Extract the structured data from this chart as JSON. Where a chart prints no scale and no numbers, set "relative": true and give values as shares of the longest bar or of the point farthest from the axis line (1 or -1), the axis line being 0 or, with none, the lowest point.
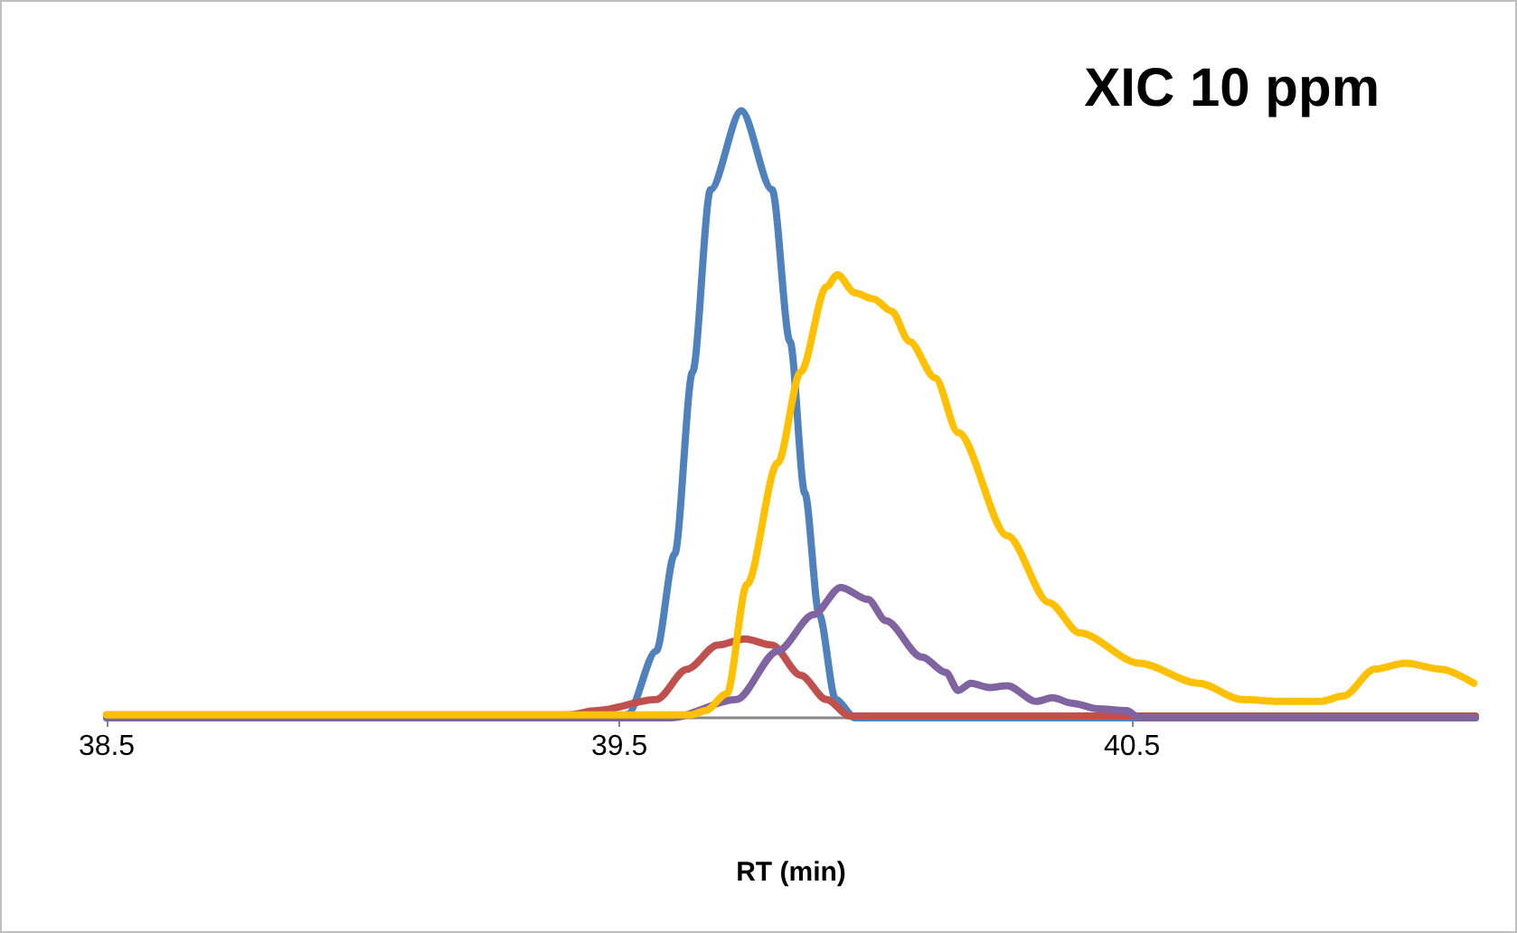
{
  "chart_data": {
    "type": "line",
    "title": "XIC 10 ppm",
    "xlabel": "RT (min)",
    "relative": true,
    "xlim": [
      38.5,
      41.17
    ],
    "xticks": [
      38.5,
      39.5,
      40.5
    ],
    "marker": "none",
    "line_style": "solid",
    "series": [
      {
        "color": "#4f81bd",
        "x": [
          38.5,
          39.5,
          39.516,
          39.572,
          39.608,
          39.643,
          39.678,
          39.738,
          39.798,
          39.833,
          39.862,
          39.89,
          39.922,
          39.96,
          41.17
        ],
        "values": [
          0,
          0,
          0.006,
          0.11,
          0.27,
          0.57,
          0.87,
          1,
          0.87,
          0.62,
          0.37,
          0.17,
          0.03,
          0,
          0
        ]
      },
      {
        "color": "#c0504d",
        "x": [
          38.5,
          39.4,
          39.456,
          39.572,
          39.632,
          39.692,
          39.745,
          39.798,
          39.854,
          39.904,
          39.95,
          41.17
        ],
        "values": [
          0.005,
          0.005,
          0.012,
          0.03,
          0.08,
          0.12,
          0.13,
          0.12,
          0.07,
          0.03,
          0.003,
          0.003
        ]
      },
      {
        "color": "#8064a2",
        "x": [
          38.5,
          39.6,
          39.728,
          39.809,
          39.879,
          39.932,
          39.985,
          40.02,
          40.09,
          40.137,
          40.161,
          40.186,
          40.221,
          40.257,
          40.313,
          40.345,
          40.384,
          40.433,
          40.49,
          40.514,
          41.17
        ],
        "values": [
          0,
          0,
          0.03,
          0.11,
          0.17,
          0.215,
          0.195,
          0.16,
          0.1,
          0.075,
          0.045,
          0.057,
          0.05,
          0.053,
          0.027,
          0.033,
          0.024,
          0.015,
          0.012,
          0,
          0
        ]
      },
      {
        "color": "#ffc000",
        "x": [
          38.5,
          39.64,
          39.668,
          39.71,
          39.749,
          39.809,
          39.854,
          39.904,
          39.925,
          39.96,
          39.996,
          40.031,
          40.066,
          40.116,
          40.161,
          40.257,
          40.338,
          40.398,
          40.514,
          40.63,
          40.715,
          40.786,
          40.867,
          40.913,
          40.973,
          41.033,
          41.103,
          41.167
        ],
        "values": [
          0.005,
          0.005,
          0.012,
          0.04,
          0.22,
          0.42,
          0.57,
          0.71,
          0.73,
          0.7,
          0.69,
          0.67,
          0.62,
          0.56,
          0.47,
          0.3,
          0.19,
          0.14,
          0.09,
          0.057,
          0.03,
          0.027,
          0.027,
          0.036,
          0.08,
          0.09,
          0.08,
          0.057
        ]
      }
    ]
  }
}
